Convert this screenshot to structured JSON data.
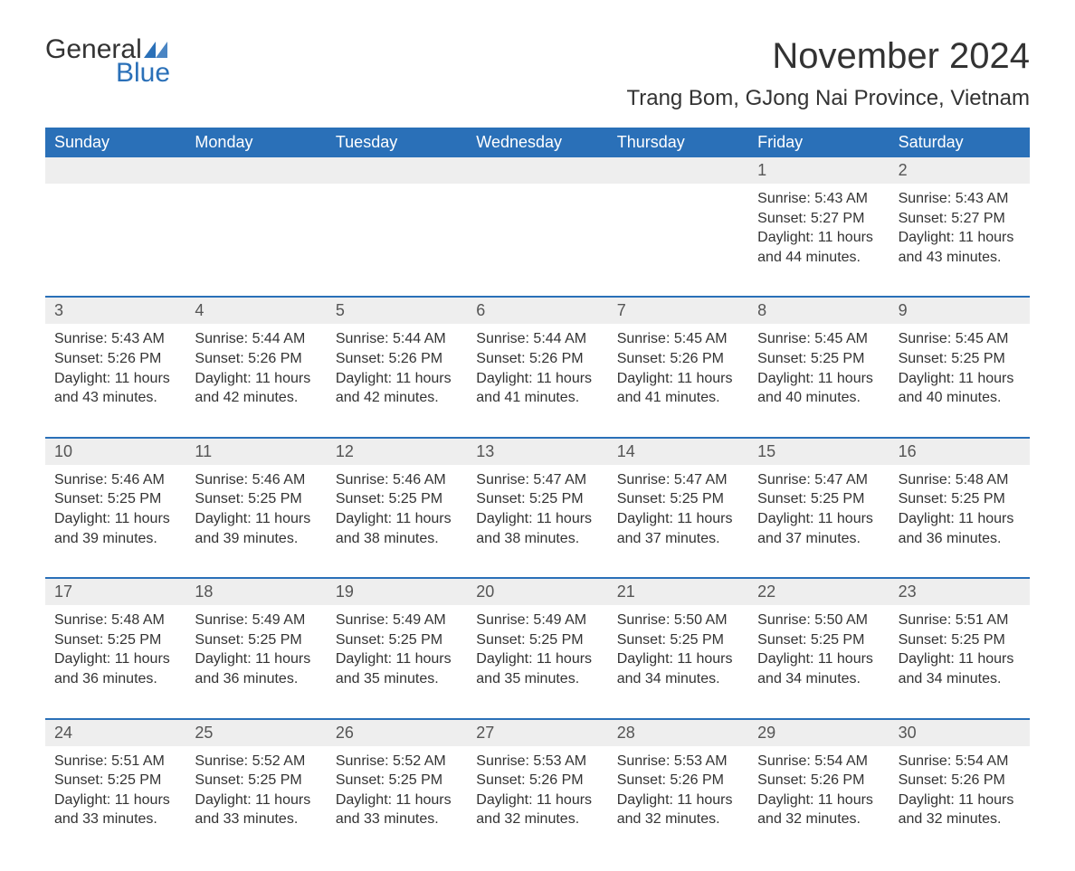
{
  "logo": {
    "text_general": "General",
    "text_blue": "Blue",
    "accent_color": "#2a70b8"
  },
  "title": "November 2024",
  "location": "Trang Bom, GJong Nai Province, Vietnam",
  "colors": {
    "header_bg": "#2a70b8",
    "header_text": "#ffffff",
    "day_band_bg": "#eeeeee",
    "week_border": "#2a70b8",
    "text": "#333333",
    "background": "#ffffff"
  },
  "weekdays": [
    "Sunday",
    "Monday",
    "Tuesday",
    "Wednesday",
    "Thursday",
    "Friday",
    "Saturday"
  ],
  "weeks": [
    [
      {
        "blank": true
      },
      {
        "blank": true
      },
      {
        "blank": true
      },
      {
        "blank": true
      },
      {
        "blank": true
      },
      {
        "day": "1",
        "sunrise": "Sunrise: 5:43 AM",
        "sunset": "Sunset: 5:27 PM",
        "daylight1": "Daylight: 11 hours",
        "daylight2": "and 44 minutes."
      },
      {
        "day": "2",
        "sunrise": "Sunrise: 5:43 AM",
        "sunset": "Sunset: 5:27 PM",
        "daylight1": "Daylight: 11 hours",
        "daylight2": "and 43 minutes."
      }
    ],
    [
      {
        "day": "3",
        "sunrise": "Sunrise: 5:43 AM",
        "sunset": "Sunset: 5:26 PM",
        "daylight1": "Daylight: 11 hours",
        "daylight2": "and 43 minutes."
      },
      {
        "day": "4",
        "sunrise": "Sunrise: 5:44 AM",
        "sunset": "Sunset: 5:26 PM",
        "daylight1": "Daylight: 11 hours",
        "daylight2": "and 42 minutes."
      },
      {
        "day": "5",
        "sunrise": "Sunrise: 5:44 AM",
        "sunset": "Sunset: 5:26 PM",
        "daylight1": "Daylight: 11 hours",
        "daylight2": "and 42 minutes."
      },
      {
        "day": "6",
        "sunrise": "Sunrise: 5:44 AM",
        "sunset": "Sunset: 5:26 PM",
        "daylight1": "Daylight: 11 hours",
        "daylight2": "and 41 minutes."
      },
      {
        "day": "7",
        "sunrise": "Sunrise: 5:45 AM",
        "sunset": "Sunset: 5:26 PM",
        "daylight1": "Daylight: 11 hours",
        "daylight2": "and 41 minutes."
      },
      {
        "day": "8",
        "sunrise": "Sunrise: 5:45 AM",
        "sunset": "Sunset: 5:25 PM",
        "daylight1": "Daylight: 11 hours",
        "daylight2": "and 40 minutes."
      },
      {
        "day": "9",
        "sunrise": "Sunrise: 5:45 AM",
        "sunset": "Sunset: 5:25 PM",
        "daylight1": "Daylight: 11 hours",
        "daylight2": "and 40 minutes."
      }
    ],
    [
      {
        "day": "10",
        "sunrise": "Sunrise: 5:46 AM",
        "sunset": "Sunset: 5:25 PM",
        "daylight1": "Daylight: 11 hours",
        "daylight2": "and 39 minutes."
      },
      {
        "day": "11",
        "sunrise": "Sunrise: 5:46 AM",
        "sunset": "Sunset: 5:25 PM",
        "daylight1": "Daylight: 11 hours",
        "daylight2": "and 39 minutes."
      },
      {
        "day": "12",
        "sunrise": "Sunrise: 5:46 AM",
        "sunset": "Sunset: 5:25 PM",
        "daylight1": "Daylight: 11 hours",
        "daylight2": "and 38 minutes."
      },
      {
        "day": "13",
        "sunrise": "Sunrise: 5:47 AM",
        "sunset": "Sunset: 5:25 PM",
        "daylight1": "Daylight: 11 hours",
        "daylight2": "and 38 minutes."
      },
      {
        "day": "14",
        "sunrise": "Sunrise: 5:47 AM",
        "sunset": "Sunset: 5:25 PM",
        "daylight1": "Daylight: 11 hours",
        "daylight2": "and 37 minutes."
      },
      {
        "day": "15",
        "sunrise": "Sunrise: 5:47 AM",
        "sunset": "Sunset: 5:25 PM",
        "daylight1": "Daylight: 11 hours",
        "daylight2": "and 37 minutes."
      },
      {
        "day": "16",
        "sunrise": "Sunrise: 5:48 AM",
        "sunset": "Sunset: 5:25 PM",
        "daylight1": "Daylight: 11 hours",
        "daylight2": "and 36 minutes."
      }
    ],
    [
      {
        "day": "17",
        "sunrise": "Sunrise: 5:48 AM",
        "sunset": "Sunset: 5:25 PM",
        "daylight1": "Daylight: 11 hours",
        "daylight2": "and 36 minutes."
      },
      {
        "day": "18",
        "sunrise": "Sunrise: 5:49 AM",
        "sunset": "Sunset: 5:25 PM",
        "daylight1": "Daylight: 11 hours",
        "daylight2": "and 36 minutes."
      },
      {
        "day": "19",
        "sunrise": "Sunrise: 5:49 AM",
        "sunset": "Sunset: 5:25 PM",
        "daylight1": "Daylight: 11 hours",
        "daylight2": "and 35 minutes."
      },
      {
        "day": "20",
        "sunrise": "Sunrise: 5:49 AM",
        "sunset": "Sunset: 5:25 PM",
        "daylight1": "Daylight: 11 hours",
        "daylight2": "and 35 minutes."
      },
      {
        "day": "21",
        "sunrise": "Sunrise: 5:50 AM",
        "sunset": "Sunset: 5:25 PM",
        "daylight1": "Daylight: 11 hours",
        "daylight2": "and 34 minutes."
      },
      {
        "day": "22",
        "sunrise": "Sunrise: 5:50 AM",
        "sunset": "Sunset: 5:25 PM",
        "daylight1": "Daylight: 11 hours",
        "daylight2": "and 34 minutes."
      },
      {
        "day": "23",
        "sunrise": "Sunrise: 5:51 AM",
        "sunset": "Sunset: 5:25 PM",
        "daylight1": "Daylight: 11 hours",
        "daylight2": "and 34 minutes."
      }
    ],
    [
      {
        "day": "24",
        "sunrise": "Sunrise: 5:51 AM",
        "sunset": "Sunset: 5:25 PM",
        "daylight1": "Daylight: 11 hours",
        "daylight2": "and 33 minutes."
      },
      {
        "day": "25",
        "sunrise": "Sunrise: 5:52 AM",
        "sunset": "Sunset: 5:25 PM",
        "daylight1": "Daylight: 11 hours",
        "daylight2": "and 33 minutes."
      },
      {
        "day": "26",
        "sunrise": "Sunrise: 5:52 AM",
        "sunset": "Sunset: 5:25 PM",
        "daylight1": "Daylight: 11 hours",
        "daylight2": "and 33 minutes."
      },
      {
        "day": "27",
        "sunrise": "Sunrise: 5:53 AM",
        "sunset": "Sunset: 5:26 PM",
        "daylight1": "Daylight: 11 hours",
        "daylight2": "and 32 minutes."
      },
      {
        "day": "28",
        "sunrise": "Sunrise: 5:53 AM",
        "sunset": "Sunset: 5:26 PM",
        "daylight1": "Daylight: 11 hours",
        "daylight2": "and 32 minutes."
      },
      {
        "day": "29",
        "sunrise": "Sunrise: 5:54 AM",
        "sunset": "Sunset: 5:26 PM",
        "daylight1": "Daylight: 11 hours",
        "daylight2": "and 32 minutes."
      },
      {
        "day": "30",
        "sunrise": "Sunrise: 5:54 AM",
        "sunset": "Sunset: 5:26 PM",
        "daylight1": "Daylight: 11 hours",
        "daylight2": "and 32 minutes."
      }
    ]
  ]
}
